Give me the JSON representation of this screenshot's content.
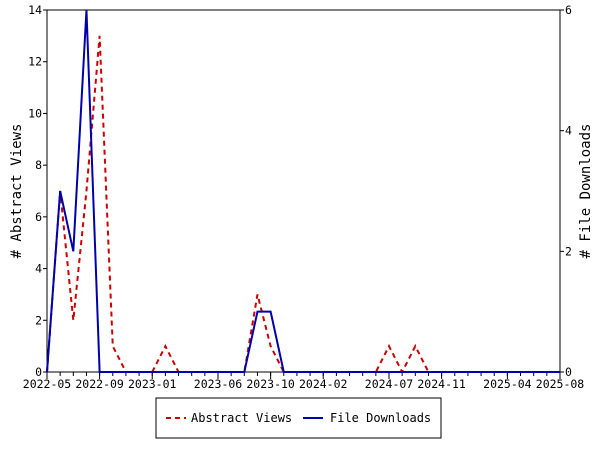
{
  "chart_data": {
    "type": "line",
    "xlabel": "",
    "ylabel_left": "# Abstract Views",
    "ylabel_right": "# File Downloads",
    "x_ticks": [
      "2022-05",
      "2022-09",
      "2023-01",
      "2023-06",
      "2023-10",
      "2024-02",
      "2024-07",
      "2024-11",
      "2025-04",
      "2025-08"
    ],
    "x": [
      "2022-05",
      "2022-06",
      "2022-07",
      "2022-08",
      "2022-09",
      "2022-10",
      "2022-11",
      "2022-12",
      "2023-01",
      "2023-02",
      "2023-03",
      "2023-04",
      "2023-05",
      "2023-06",
      "2023-07",
      "2023-08",
      "2023-09",
      "2023-10",
      "2023-11",
      "2023-12",
      "2024-01",
      "2024-02",
      "2024-03",
      "2024-04",
      "2024-05",
      "2024-06",
      "2024-07",
      "2024-08",
      "2024-09",
      "2024-10",
      "2024-11",
      "2024-12",
      "2025-01",
      "2025-02",
      "2025-03",
      "2025-04",
      "2025-05",
      "2025-06",
      "2025-07",
      "2025-08"
    ],
    "ylim_left": [
      0,
      14
    ],
    "yticks_left": [
      0,
      2,
      4,
      6,
      8,
      10,
      12,
      14
    ],
    "ylim_right": [
      0,
      6
    ],
    "yticks_right": [
      0,
      2,
      4,
      6
    ],
    "grid": false,
    "legend_position": "bottom",
    "series": [
      {
        "name": "Abstract Views",
        "axis": "left",
        "color": "#cc0000",
        "dash": "dashed",
        "values": [
          0,
          7,
          2,
          7,
          13,
          1,
          0,
          0,
          0,
          1,
          0,
          0,
          0,
          0,
          0,
          0,
          3,
          1,
          0,
          0,
          0,
          0,
          0,
          0,
          0,
          0,
          1,
          0,
          1,
          0,
          0,
          0,
          0,
          0,
          0,
          0,
          0,
          0,
          0,
          0
        ]
      },
      {
        "name": "File Downloads",
        "axis": "right",
        "color": "#0000aa",
        "dash": "solid",
        "values": [
          0,
          3,
          2,
          6,
          0,
          0,
          0,
          0,
          0,
          0,
          0,
          0,
          0,
          0,
          0,
          0,
          1,
          1,
          0,
          0,
          0,
          0,
          0,
          0,
          0,
          0,
          0,
          0,
          0,
          0,
          0,
          0,
          0,
          0,
          0,
          0,
          0,
          0,
          0,
          0
        ]
      }
    ]
  }
}
